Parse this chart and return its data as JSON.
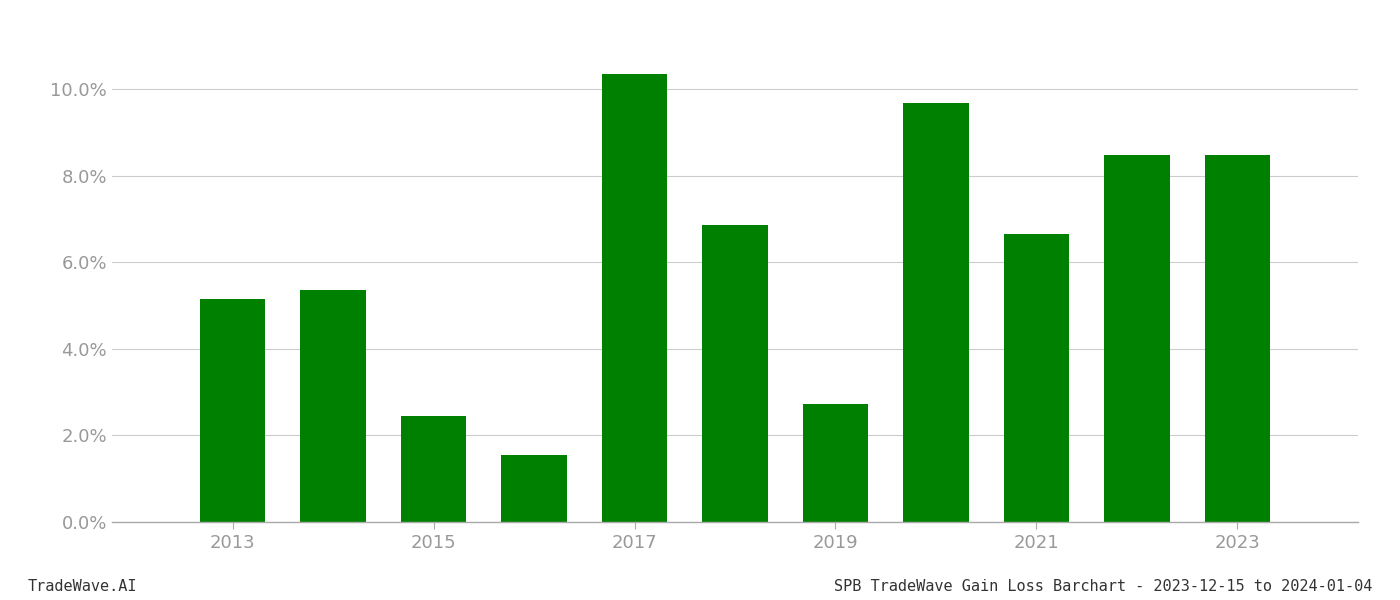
{
  "years": [
    2013,
    2014,
    2015,
    2016,
    2017,
    2018,
    2019,
    2020,
    2021,
    2022,
    2023
  ],
  "values": [
    0.0515,
    0.0535,
    0.0245,
    0.0155,
    0.1035,
    0.0685,
    0.0272,
    0.0967,
    0.0665,
    0.0847,
    0.0847
  ],
  "bar_color": "#008000",
  "ylim": [
    0,
    0.115
  ],
  "ytick_values": [
    0.0,
    0.02,
    0.04,
    0.06,
    0.08,
    0.1
  ],
  "xtick_positions": [
    2013,
    2015,
    2017,
    2019,
    2021,
    2023
  ],
  "xlim": [
    2011.8,
    2024.2
  ],
  "footer_left": "TradeWave.AI",
  "footer_right": "SPB TradeWave Gain Loss Barchart - 2023-12-15 to 2024-01-04",
  "bg_color": "#ffffff",
  "grid_color": "#cccccc",
  "axis_color": "#aaaaaa",
  "tick_label_color": "#999999",
  "footer_font_size": 11,
  "bar_width": 0.65
}
